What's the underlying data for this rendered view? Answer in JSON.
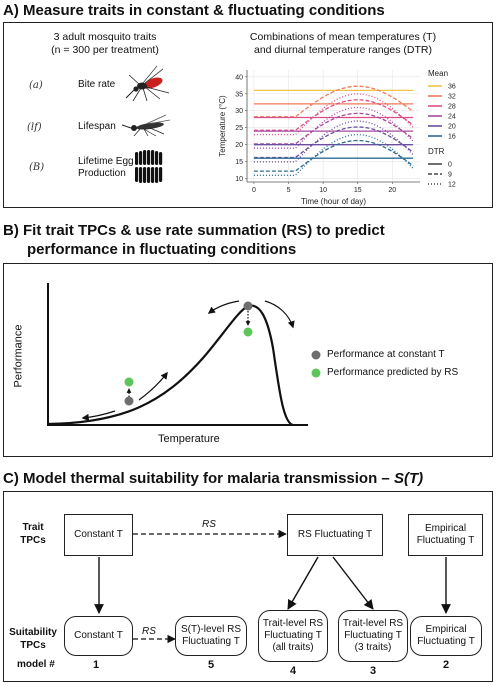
{
  "panel_a": {
    "title": "A) Measure traits in constant & fluctuating conditions",
    "traits_heading_1": "3 adult mosquito traits",
    "traits_heading_2": "(n = 300 per treatment)",
    "traits": [
      {
        "symbol": "(a)",
        "label": "Bite rate",
        "icon": "mosquito-biting-icon"
      },
      {
        "symbol": "(lf)",
        "label": "Lifespan",
        "icon": "mosquito-dead-icon"
      },
      {
        "symbol": "(B)",
        "label_1": "Lifetime Egg",
        "label_2": "Production",
        "icon": "eggs-icon"
      }
    ],
    "chart_heading_1": "Combinations of mean temperatures (T)",
    "chart_heading_2": "and diurnal temperature ranges (DTR)"
  },
  "chart_data": {
    "type": "line",
    "xlabel": "Time (hour of day)",
    "ylabel": "Temperature (°C)",
    "xlim": [
      -1,
      24
    ],
    "ylim": [
      9,
      42
    ],
    "xticks": [
      0,
      5,
      10,
      15,
      20
    ],
    "yticks": [
      10,
      15,
      20,
      25,
      30,
      35,
      40
    ],
    "grid": true,
    "legend_mean_title": "Mean",
    "legend_dtr_title": "DTR",
    "means": [
      36,
      32,
      28,
      24,
      20,
      16
    ],
    "mean_colors": [
      "#F0C24A",
      "#F07A5A",
      "#DD4E86",
      "#A64BA0",
      "#6B4E9E",
      "#2E6C94"
    ],
    "dtrs": [
      0,
      9,
      12
    ],
    "dtr_styles": [
      "solid",
      "dashed",
      "dotted"
    ],
    "series": [
      {
        "mean": 36,
        "dtr": 0
      },
      {
        "mean": 32,
        "dtr": 0
      },
      {
        "mean": 32,
        "dtr": 9
      },
      {
        "mean": 28,
        "dtr": 0
      },
      {
        "mean": 28,
        "dtr": 9
      },
      {
        "mean": 28,
        "dtr": 12
      },
      {
        "mean": 24,
        "dtr": 0
      },
      {
        "mean": 24,
        "dtr": 9
      },
      {
        "mean": 24,
        "dtr": 12
      },
      {
        "mean": 20,
        "dtr": 0
      },
      {
        "mean": 20,
        "dtr": 9
      },
      {
        "mean": 20,
        "dtr": 12
      },
      {
        "mean": 16,
        "dtr": 0
      },
      {
        "mean": 16,
        "dtr": 9
      },
      {
        "mean": 16,
        "dtr": 12
      }
    ]
  },
  "panel_b": {
    "title_1": "B) Fit trait TPCs & use rate summation (RS) to predict",
    "title_2": "performance in fluctuating conditions",
    "ylabel": "Performance",
    "xlabel": "Temperature",
    "legend": [
      {
        "label": "Performance at constant T",
        "color": "#6e6e6e"
      },
      {
        "label": "Performance predicted by RS",
        "color": "#5cc65c"
      }
    ]
  },
  "panel_c": {
    "title_prefix": "C) Model thermal suitability for malaria transmission – ",
    "title_suffix": "S(T)",
    "row_trait_1": "Trait",
    "row_trait_2": "TPCs",
    "row_suit_1": "Suitability",
    "row_suit_2": "TPCs",
    "model_label": "model #",
    "top_boxes": {
      "constant": "Constant T",
      "rs_fluct": "RS Fluctuating T",
      "empirical_1": "Empirical",
      "empirical_2": "Fluctuating T"
    },
    "arrow_label": "RS",
    "bottom_boxes": [
      {
        "lines": [
          "Constant T"
        ],
        "model": "1"
      },
      {
        "lines": [
          "S(T)-level RS",
          "Fluctuating T"
        ],
        "model": "5"
      },
      {
        "lines": [
          "Trait-level RS",
          "Fluctuating T",
          "(all traits)"
        ],
        "model": "4"
      },
      {
        "lines": [
          "Trait-level RS",
          "Fluctuating T",
          "(3 traits)"
        ],
        "model": "3"
      },
      {
        "lines": [
          "Empirical",
          "Fluctuating T"
        ],
        "model": "2"
      }
    ]
  }
}
